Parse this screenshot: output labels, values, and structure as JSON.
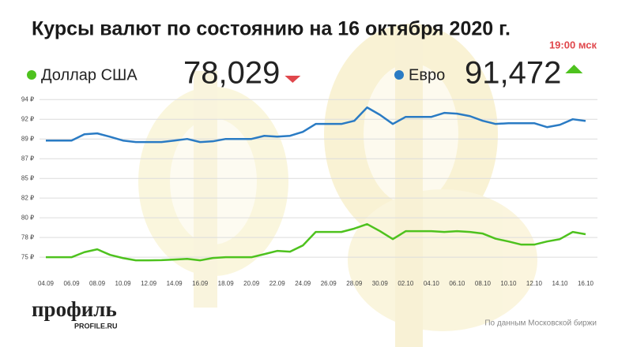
{
  "chart_data": {
    "type": "line",
    "title": "Курсы валют по состоянию на 16 октября 2020 г.",
    "subtitle": "19:00 мск",
    "categories": [
      "04.09",
      null,
      "06.09",
      null,
      "08.09",
      null,
      "10.09",
      null,
      "12.09",
      null,
      "14.09",
      null,
      "16.09",
      null,
      "18.09",
      null,
      "20.09",
      null,
      "22.09",
      null,
      "24.09",
      null,
      "26.09",
      null,
      "28.09",
      null,
      "30.09",
      null,
      "02.10",
      null,
      "04.10",
      null,
      "06.10",
      null,
      "08.10",
      null,
      "10.10",
      null,
      "12.10",
      null,
      "14.10",
      null,
      "16.10"
    ],
    "series": [
      {
        "name": "Доллар США",
        "color": "#4ec21e",
        "values": [
          75.3,
          75.3,
          75.3,
          75.9,
          76.24,
          75.58,
          75.2,
          74.93,
          74.93,
          74.95,
          75.02,
          75.11,
          74.93,
          75.21,
          75.3,
          75.3,
          75.3,
          75.67,
          76.05,
          75.96,
          76.7,
          78.3,
          78.3,
          78.3,
          78.7,
          79.23,
          78.4,
          77.45,
          78.39,
          78.39,
          78.39,
          78.3,
          78.39,
          78.3,
          78.11,
          77.5,
          77.17,
          76.8,
          76.8,
          77.17,
          77.45,
          78.3,
          78.029
        ],
        "latest": {
          "value": 78.029,
          "label": "78,029",
          "trend": "down",
          "color": "#e0474c"
        }
      },
      {
        "name": "Евро",
        "color": "#2a7bc4",
        "values": [
          89.15,
          89.15,
          89.15,
          89.9,
          90.0,
          89.6,
          89.15,
          88.97,
          88.97,
          88.97,
          89.15,
          89.34,
          88.97,
          89.06,
          89.34,
          89.34,
          89.34,
          89.71,
          89.62,
          89.71,
          90.18,
          91.12,
          91.12,
          91.12,
          91.49,
          93.08,
          92.2,
          91.12,
          91.96,
          91.96,
          91.96,
          92.43,
          92.34,
          92.05,
          91.49,
          91.12,
          91.21,
          91.21,
          91.21,
          90.74,
          91.02,
          91.68,
          91.472
        ],
        "latest": {
          "value": 91.472,
          "label": "91,472",
          "trend": "up",
          "color": "#4ec21e"
        }
      }
    ],
    "ylim": [
      74.1,
      94.6
    ],
    "yticks": [
      {
        "value": 75.3,
        "label": "75 ₽"
      },
      {
        "value": 77.64,
        "label": "78 ₽"
      },
      {
        "value": 79.98,
        "label": "80 ₽"
      },
      {
        "value": 82.32,
        "label": "82 ₽"
      },
      {
        "value": 84.66,
        "label": "85 ₽"
      },
      {
        "value": 87,
        "label": "87 ₽"
      },
      {
        "value": 89.34,
        "label": "89 ₽"
      },
      {
        "value": 91.68,
        "label": "92 ₽"
      },
      {
        "value": 94.02,
        "label": "94 ₽"
      }
    ],
    "grid": true
  },
  "footer": {
    "logo": "профиль",
    "logo_url": "PROFILE.RU",
    "source": "По данным Московской биржи"
  }
}
